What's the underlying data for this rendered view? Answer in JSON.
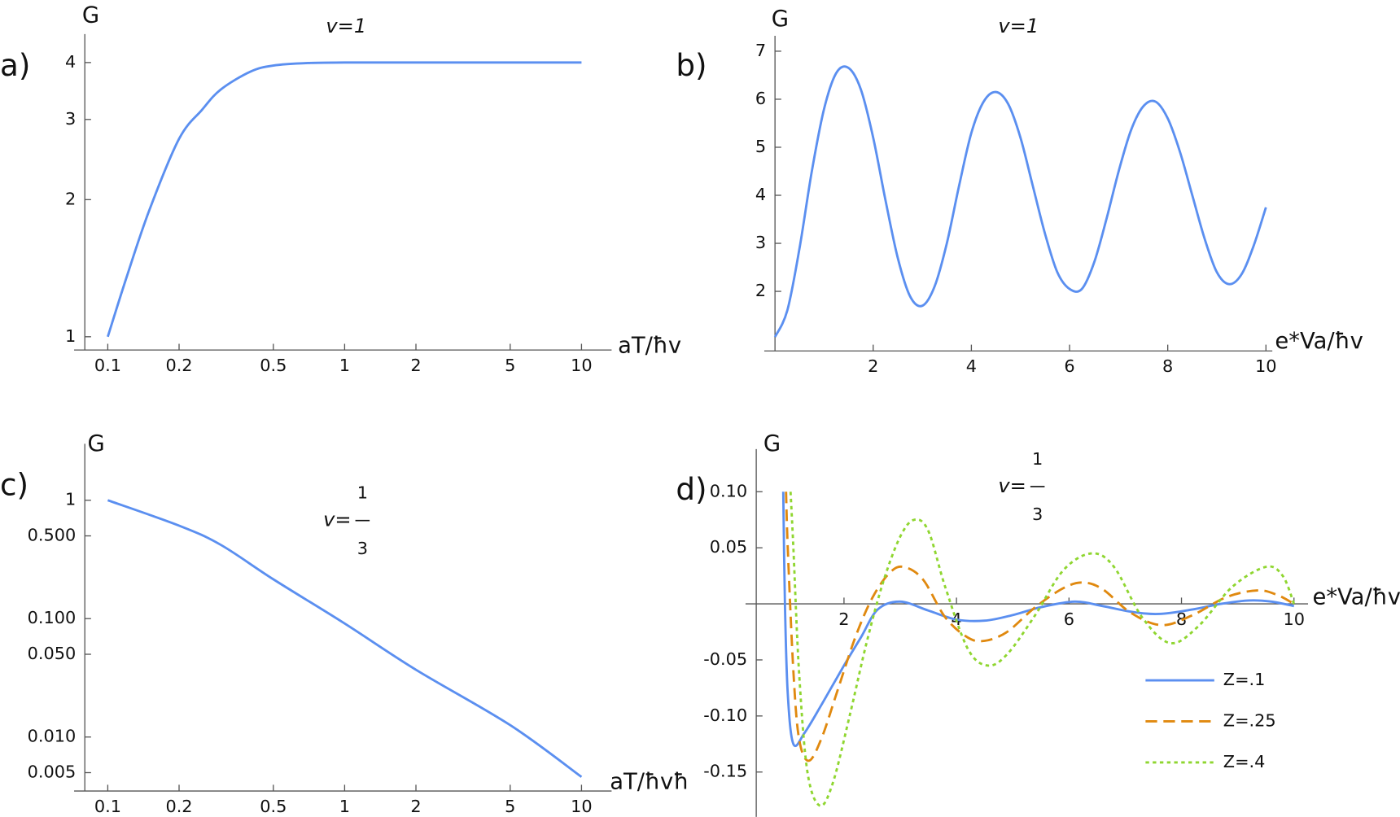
{
  "chart_data": [
    {
      "type": "line",
      "panel_label": "a)",
      "y_label": "G",
      "x_label": "aT/ħv",
      "nu_label": {
        "text": "v=1"
      },
      "x_scale": "log",
      "y_scale": "log",
      "xlim": [
        0.08,
        13.4
      ],
      "ylim": [
        0.935,
        4.62
      ],
      "xticks": [
        0.1,
        0.2,
        0.5,
        1,
        2,
        5,
        10
      ],
      "yticks": [
        1,
        2,
        3,
        4
      ],
      "color": "#5b8ff0",
      "x": [
        0.1,
        0.12,
        0.15,
        0.2,
        0.25,
        0.3,
        0.4,
        0.5,
        0.7,
        1,
        2,
        5,
        10
      ],
      "values": [
        1,
        1.35,
        1.9,
        2.72,
        3.15,
        3.49,
        3.82,
        3.94,
        3.99,
        4,
        4,
        4,
        4
      ]
    },
    {
      "type": "line",
      "panel_label": "b)",
      "y_label": "G",
      "x_label": "e*Va/ħv",
      "nu_label": {
        "text": "v=1"
      },
      "x_scale": "linear",
      "y_scale": "linear",
      "xlim": [
        0,
        10.13
      ],
      "ylim": [
        0.76,
        7.32
      ],
      "xticks": [
        2,
        4,
        6,
        8,
        10
      ],
      "yticks": [
        2,
        3,
        4,
        5,
        6,
        7
      ],
      "color": "#5b8ff0",
      "x": [
        0,
        0.25,
        0.5,
        0.75,
        1,
        1.25,
        1.5,
        1.75,
        2,
        2.25,
        2.5,
        2.75,
        3,
        3.25,
        3.5,
        3.75,
        4,
        4.25,
        4.5,
        4.75,
        5,
        5.25,
        5.5,
        5.75,
        6,
        6.25,
        6.5,
        6.75,
        7,
        7.25,
        7.5,
        7.75,
        8,
        8.25,
        8.5,
        8.75,
        9,
        9.25,
        9.5,
        9.75,
        10
      ],
      "values": [
        1.05,
        1.6,
        2.9,
        4.5,
        5.8,
        6.55,
        6.65,
        6.2,
        5.2,
        3.9,
        2.7,
        1.9,
        1.7,
        2.1,
        3.0,
        4.2,
        5.3,
        5.95,
        6.15,
        5.9,
        5.2,
        4.2,
        3.2,
        2.4,
        2.05,
        2.05,
        2.6,
        3.5,
        4.5,
        5.35,
        5.85,
        5.95,
        5.6,
        4.9,
        4.0,
        3.1,
        2.4,
        2.15,
        2.35,
        2.95,
        3.75
      ]
    },
    {
      "type": "line",
      "panel_label": "c)",
      "y_label": "G",
      "x_label": "aT/ħvħ",
      "nu_label": {
        "lhs": "v=",
        "numerator": "1",
        "denominator": "3"
      },
      "x_scale": "log",
      "y_scale": "log",
      "xlim": [
        0.08,
        13.4
      ],
      "ylim": [
        0.0035,
        3
      ],
      "xticks": [
        0.1,
        0.2,
        0.5,
        1,
        2,
        5,
        10
      ],
      "yticks": [
        {
          "value": 0.005,
          "label": "0.005"
        },
        {
          "value": 0.01,
          "label": "0.010"
        },
        {
          "value": 0.05,
          "label": "0.050"
        },
        {
          "value": 0.1,
          "label": "0.100"
        },
        {
          "value": 0.5,
          "label": "0.500"
        },
        1
      ],
      "color": "#5b8ff0",
      "x": [
        0.1,
        0.2,
        0.3,
        0.5,
        1,
        2,
        5,
        10
      ],
      "values": [
        1,
        0.61,
        0.42,
        0.215,
        0.091,
        0.037,
        0.0126,
        0.0046
      ]
    },
    {
      "type": "line",
      "panel_label": "d)",
      "y_label": "G",
      "x_label": "e*Va/ħv",
      "nu_label": {
        "lhs": "v=",
        "numerator": "1",
        "denominator": "3"
      },
      "x_scale": "linear",
      "y_scale": "linear",
      "xlim": [
        0.44,
        10.25
      ],
      "ylim": [
        -0.19,
        0.138
      ],
      "xticks": [
        2,
        4,
        6,
        8,
        10
      ],
      "yticks": [
        {
          "value": 0.1,
          "label": "0.10"
        },
        0.05,
        -0.05,
        {
          "value": -0.1,
          "label": "-0.10"
        },
        -0.15
      ],
      "series": [
        {
          "name": "Z=.1",
          "color": "#5b8ff0",
          "dash": "solid",
          "x": [
            0.92,
            0.95,
            1.0,
            1.1,
            1.3,
            1.6,
            2.0,
            2.3,
            2.6,
            3.0,
            3.5,
            4.0,
            4.5,
            5.0,
            5.5,
            6.1,
            6.6,
            7.1,
            7.6,
            8.2,
            8.7,
            9.2,
            9.6,
            10
          ],
          "values": [
            0.1,
            0.0,
            -0.08,
            -0.125,
            -0.115,
            -0.09,
            -0.055,
            -0.03,
            -0.005,
            0.002,
            -0.006,
            -0.014,
            -0.015,
            -0.01,
            -0.003,
            0.002,
            -0.002,
            -0.007,
            -0.009,
            -0.005,
            0.0,
            0.003,
            0.002,
            -0.002
          ]
        },
        {
          "name": "Z=.25",
          "color": "#e0890f",
          "dash": "dashed",
          "x": [
            0.97,
            1.0,
            1.1,
            1.2,
            1.37,
            1.6,
            1.9,
            2.2,
            2.5,
            2.8,
            3.05,
            3.4,
            3.8,
            4.2,
            4.5,
            4.9,
            5.4,
            5.9,
            6.25,
            6.6,
            7.1,
            7.65,
            8.2,
            8.8,
            9.35,
            9.7,
            10
          ],
          "values": [
            0.1,
            0.05,
            -0.06,
            -0.12,
            -0.14,
            -0.12,
            -0.075,
            -0.03,
            0.005,
            0.027,
            0.033,
            0.022,
            -0.012,
            -0.03,
            -0.033,
            -0.025,
            -0.003,
            0.014,
            0.019,
            0.013,
            -0.008,
            -0.019,
            -0.01,
            0.006,
            0.012,
            0.008,
            0.0
          ]
        },
        {
          "name": "Z=.4",
          "color": "#8fd630",
          "dash": "dotted",
          "x": [
            1.05,
            1.1,
            1.2,
            1.35,
            1.57,
            1.8,
            2.1,
            2.4,
            2.7,
            3.0,
            3.25,
            3.5,
            3.8,
            4.2,
            4.55,
            4.9,
            5.4,
            5.9,
            6.4,
            6.8,
            7.3,
            7.8,
            8.3,
            8.9,
            9.5,
            9.8,
            10
          ],
          "values": [
            0.1,
            0.05,
            -0.06,
            -0.15,
            -0.18,
            -0.16,
            -0.1,
            -0.035,
            0.02,
            0.06,
            0.075,
            0.065,
            0.015,
            -0.04,
            -0.055,
            -0.045,
            -0.01,
            0.03,
            0.045,
            0.033,
            -0.012,
            -0.035,
            -0.02,
            0.015,
            0.033,
            0.025,
            0.0
          ]
        }
      ]
    }
  ]
}
